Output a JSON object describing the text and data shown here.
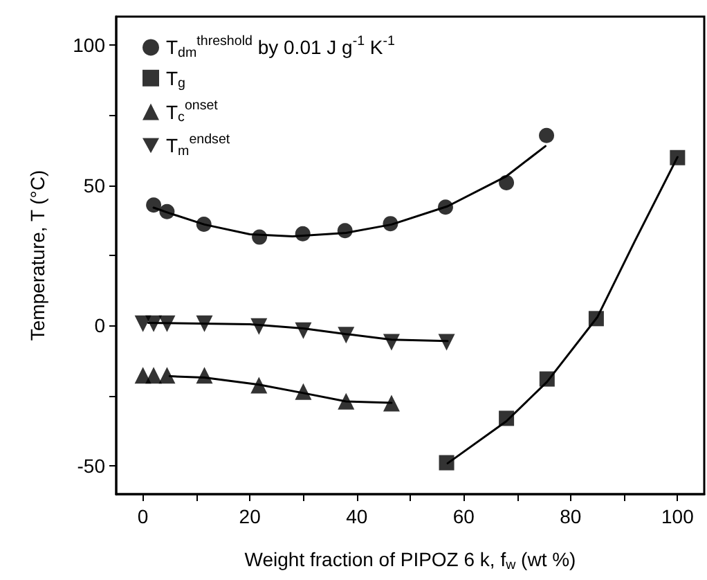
{
  "chart_data": {
    "type": "scatter",
    "xlabel": "Weight fraction of PIPOZ 6 k, f$_{w}$ (wt %)",
    "ylabel": "Temperature, T (°C)",
    "xlim": [
      -5,
      105
    ],
    "xticks": [
      0,
      {
        "value": 10,
        "label": null
      },
      20,
      {
        "value": 30,
        "label": null
      },
      40,
      {
        "value": 50,
        "label": null
      },
      60,
      {
        "value": 70,
        "label": null
      },
      80,
      {
        "value": 90,
        "label": null
      },
      100
    ],
    "ylim": [
      -60,
      110
    ],
    "yticks": [
      -50,
      {
        "value": -25,
        "label": null
      },
      0,
      {
        "value": 25,
        "label": null
      },
      50,
      {
        "value": 75,
        "label": null
      },
      100
    ],
    "legend": "top left",
    "series": [
      {
        "name": "T$_{dm}$$^{threshold}$ by 0.01 J g$^{-1}$ K$^{-1}$",
        "marker": "circle",
        "color": "#000000",
        "x": [
          2,
          4.5,
          11.4,
          21.8,
          29.9,
          37.8,
          46.3,
          56.6,
          68,
          75.5
        ],
        "values": [
          42.9,
          40.6,
          36.1,
          31.5,
          32.7,
          33.8,
          36.3,
          42.2,
          50.9,
          67.7
        ]
      },
      {
        "name": "T$_{g}$",
        "marker": "square",
        "color": "#000000",
        "x": [
          56.8,
          68,
          75.6,
          84.8,
          100
        ],
        "values": [
          -48.8,
          -33,
          -19,
          2.5,
          59.8
        ]
      },
      {
        "name": "T$_{c}$$^{onset}$",
        "marker": "triangle",
        "color": "#000000",
        "x": [
          0,
          2,
          4.5,
          11.5,
          21.7,
          30,
          38,
          46.5
        ],
        "values": [
          -17.7,
          -17.7,
          -17.7,
          -17.7,
          -21.2,
          -23.5,
          -26.9,
          -27.6
        ]
      },
      {
        "name": "T$_{m}$$^{endset}$",
        "marker": "triangle-down",
        "color": "#000000",
        "x": [
          0,
          2,
          4.5,
          11.5,
          21.7,
          30,
          38,
          46.5,
          56.8
        ],
        "values": [
          0.7,
          0.7,
          0.7,
          0.7,
          -0.3,
          -1.8,
          -3.4,
          -5.9,
          -5.9
        ]
      },
      {
        "type": "line",
        "marker": "none",
        "color": "#000000",
        "x": [
          2,
          5,
          11.5,
          20,
          28,
          38,
          46.5,
          57,
          68,
          75.3
        ],
        "values": [
          42,
          40,
          36,
          32.5,
          31.8,
          33,
          36,
          42.5,
          53.2,
          63.9
        ]
      },
      {
        "type": "line",
        "marker": "none",
        "color": "#000000",
        "x": [
          57,
          68,
          75.6,
          85,
          92,
          100
        ],
        "values": [
          -49,
          -34,
          -20,
          3,
          30,
          60
        ]
      },
      {
        "type": "line",
        "marker": "none",
        "color": "#000000",
        "x": [
          5,
          11.5,
          21.7,
          30,
          38,
          46.5
        ],
        "values": [
          -18,
          -18.5,
          -21,
          -24,
          -27,
          -27.5
        ]
      },
      {
        "type": "line",
        "marker": "none",
        "color": "#000000",
        "x": [
          1,
          20,
          30,
          38,
          46.5,
          57
        ],
        "values": [
          1,
          0.5,
          -1,
          -3,
          -5,
          -5.5
        ]
      }
    ]
  }
}
